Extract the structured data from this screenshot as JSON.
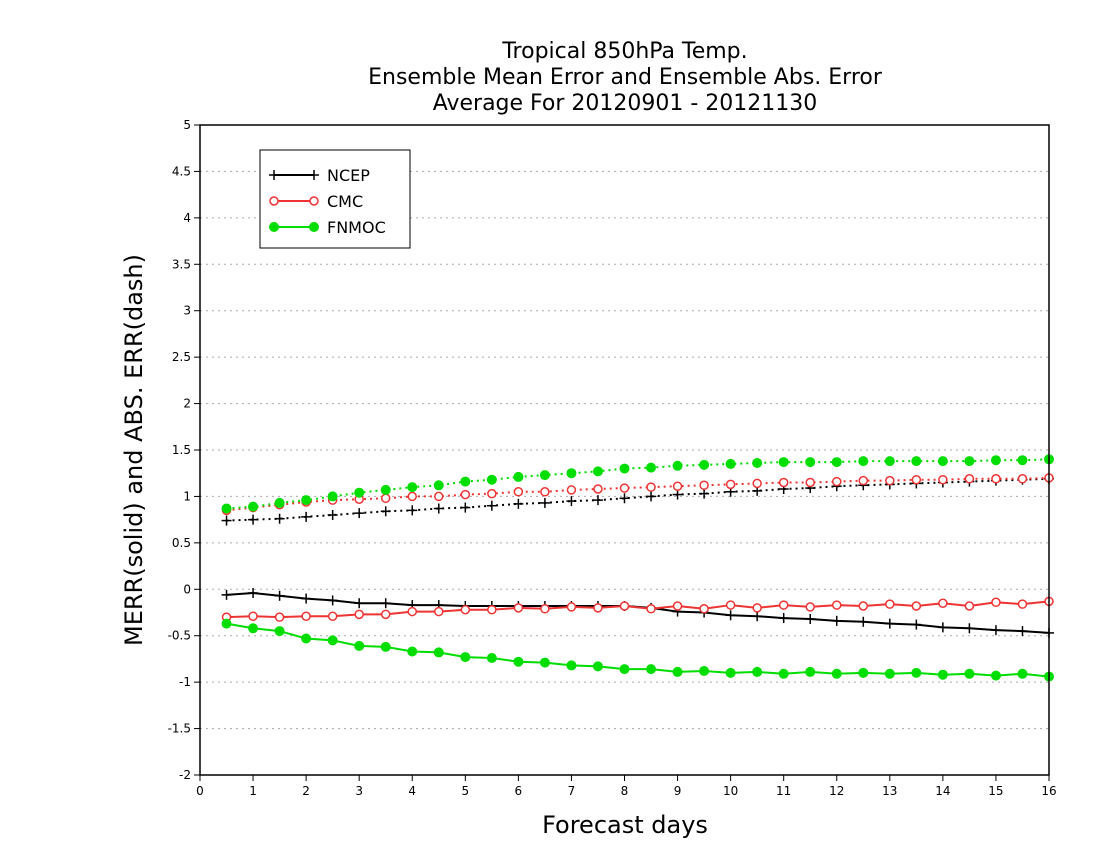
{
  "chart_data": {
    "type": "line",
    "title": [
      "Tropical 850hPa Temp.",
      "Ensemble Mean Error and Ensemble Abs. Error",
      "Average For 20120901 - 20121130"
    ],
    "xlabel": "Forecast days",
    "ylabel": "MERR(solid) and ABS. ERR(dash)",
    "xlim": [
      0,
      16
    ],
    "ylim": [
      -2,
      5
    ],
    "xticks": [
      "0",
      "1",
      "2",
      "3",
      "4",
      "5",
      "6",
      "7",
      "8",
      "9",
      "10",
      "11",
      "12",
      "13",
      "14",
      "15",
      "16"
    ],
    "yticks": [
      "-2",
      "-1.5",
      "-1",
      "-0.5",
      "0",
      "0.5",
      "1",
      "1.5",
      "2",
      "2.5",
      "3",
      "3.5",
      "4",
      "4.5",
      "5"
    ],
    "grid": true,
    "legend_position": "top-left",
    "x": [
      0.5,
      1,
      1.5,
      2,
      2.5,
      3,
      3.5,
      4,
      4.5,
      5,
      5.5,
      6,
      6.5,
      7,
      7.5,
      8,
      8.5,
      9,
      9.5,
      10,
      10.5,
      11,
      11.5,
      12,
      12.5,
      13,
      13.5,
      14,
      14.5,
      15,
      15.5,
      16
    ],
    "series": [
      {
        "name": "NCEP",
        "color": "#000000",
        "marker": "plus",
        "merr": [
          -0.06,
          -0.04,
          -0.07,
          -0.1,
          -0.12,
          -0.15,
          -0.15,
          -0.17,
          -0.17,
          -0.18,
          -0.18,
          -0.18,
          -0.18,
          -0.18,
          -0.18,
          -0.18,
          -0.2,
          -0.24,
          -0.25,
          -0.28,
          -0.29,
          -0.31,
          -0.32,
          -0.34,
          -0.35,
          -0.37,
          -0.38,
          -0.41,
          -0.42,
          -0.44,
          -0.45,
          -0.47
        ],
        "abs_err": [
          0.74,
          0.75,
          0.76,
          0.78,
          0.8,
          0.82,
          0.84,
          0.85,
          0.87,
          0.88,
          0.9,
          0.92,
          0.93,
          0.95,
          0.96,
          0.98,
          1.0,
          1.02,
          1.03,
          1.05,
          1.06,
          1.08,
          1.09,
          1.11,
          1.12,
          1.13,
          1.14,
          1.15,
          1.16,
          1.17,
          1.18,
          1.19
        ]
      },
      {
        "name": "CMC",
        "color": "#ee3333",
        "marker": "open-circle",
        "merr": [
          -0.3,
          -0.29,
          -0.3,
          -0.29,
          -0.29,
          -0.27,
          -0.27,
          -0.24,
          -0.24,
          -0.22,
          -0.22,
          -0.2,
          -0.21,
          -0.19,
          -0.2,
          -0.18,
          -0.21,
          -0.18,
          -0.21,
          -0.17,
          -0.2,
          -0.17,
          -0.19,
          -0.17,
          -0.18,
          -0.16,
          -0.18,
          -0.15,
          -0.18,
          -0.14,
          -0.16,
          -0.13
        ],
        "abs_err": [
          0.85,
          0.88,
          0.91,
          0.94,
          0.96,
          0.97,
          0.98,
          1.0,
          1.0,
          1.02,
          1.03,
          1.05,
          1.05,
          1.07,
          1.08,
          1.09,
          1.1,
          1.11,
          1.12,
          1.13,
          1.14,
          1.15,
          1.15,
          1.16,
          1.17,
          1.17,
          1.18,
          1.18,
          1.19,
          1.19,
          1.19,
          1.2
        ]
      },
      {
        "name": "FNMOC",
        "color": "#00dd00",
        "marker": "filled-circle",
        "merr": [
          -0.37,
          -0.42,
          -0.45,
          -0.53,
          -0.55,
          -0.61,
          -0.62,
          -0.67,
          -0.68,
          -0.73,
          -0.74,
          -0.78,
          -0.79,
          -0.82,
          -0.83,
          -0.86,
          -0.86,
          -0.89,
          -0.88,
          -0.9,
          -0.89,
          -0.91,
          -0.89,
          -0.91,
          -0.9,
          -0.91,
          -0.9,
          -0.92,
          -0.91,
          -0.93,
          -0.91,
          -0.94
        ],
        "abs_err": [
          0.87,
          0.89,
          0.93,
          0.96,
          1.0,
          1.04,
          1.07,
          1.1,
          1.12,
          1.16,
          1.18,
          1.21,
          1.23,
          1.25,
          1.27,
          1.3,
          1.31,
          1.33,
          1.34,
          1.35,
          1.36,
          1.37,
          1.37,
          1.37,
          1.38,
          1.38,
          1.38,
          1.38,
          1.38,
          1.39,
          1.39,
          1.4
        ]
      }
    ]
  }
}
